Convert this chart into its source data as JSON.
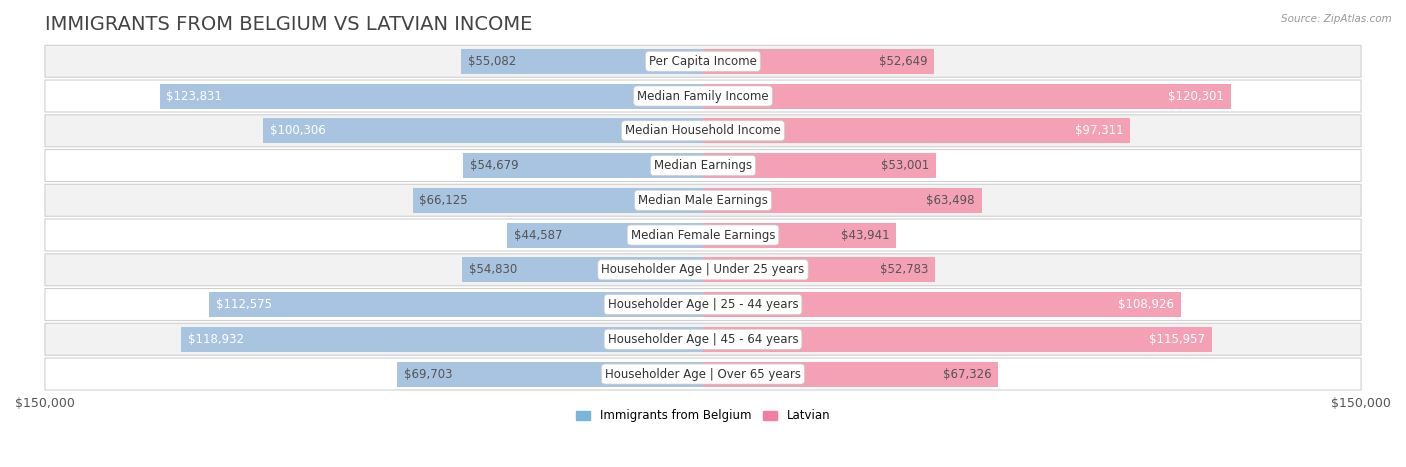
{
  "title": "IMMIGRANTS FROM BELGIUM VS LATVIAN INCOME",
  "source": "Source: ZipAtlas.com",
  "categories": [
    "Per Capita Income",
    "Median Family Income",
    "Median Household Income",
    "Median Earnings",
    "Median Male Earnings",
    "Median Female Earnings",
    "Householder Age | Under 25 years",
    "Householder Age | 25 - 44 years",
    "Householder Age | 45 - 64 years",
    "Householder Age | Over 65 years"
  ],
  "belgium_values": [
    55082,
    123831,
    100306,
    54679,
    66125,
    44587,
    54830,
    112575,
    118932,
    69703
  ],
  "latvian_values": [
    52649,
    120301,
    97311,
    53001,
    63498,
    43941,
    52783,
    108926,
    115957,
    67326
  ],
  "belgium_color": "#a8c4e0",
  "latvian_color": "#f4a0b5",
  "belgium_label": "Immigrants from Belgium",
  "latvian_label": "Latvian",
  "xlim": 150000,
  "bar_height": 0.72,
  "row_bg_even": "#f2f2f2",
  "row_bg_odd": "#ffffff",
  "row_border_color": "#d0d0d0",
  "title_fontsize": 14,
  "label_fontsize": 8.5,
  "tick_fontsize": 9,
  "value_label_threshold": 90000,
  "legend_belgium_color": "#7ab4d8",
  "legend_latvian_color": "#f080a0",
  "title_color": "#444444",
  "value_color_outside": "#555555",
  "value_color_inside": "#ffffff"
}
